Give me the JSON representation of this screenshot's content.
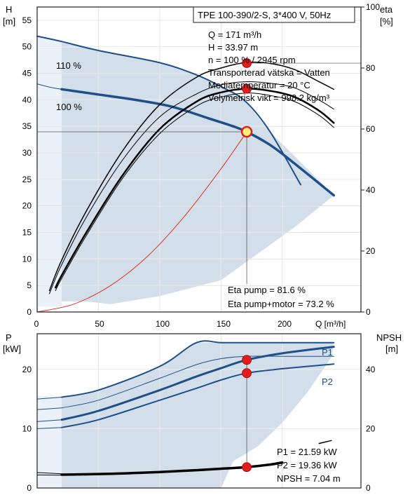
{
  "chart_data": [
    {
      "type": "line",
      "title": "TPE 100-390/2-S, 3*400 V, 50Hz",
      "xlabel": "Q [m³/h]",
      "ylabel_left_1": "H",
      "ylabel_left_2": "[m]",
      "ylabel_right_1": "eta",
      "ylabel_right_2": "[%]",
      "xlim": [
        0,
        250
      ],
      "ylim_left": [
        0,
        57.5
      ],
      "ylim_right": [
        0,
        100
      ],
      "grid": true,
      "x_ticks": [
        "0",
        "50",
        "100",
        "150",
        "200"
      ],
      "y_ticks_left": [
        "0",
        "5",
        "10",
        "15",
        "20",
        "25",
        "30",
        "35",
        "40",
        "45",
        "50",
        "55"
      ],
      "y_ticks_right": [
        "0",
        "20",
        "40",
        "60",
        "80",
        "100"
      ],
      "curve_labels": [
        "110 %",
        "100 %"
      ],
      "info_lines": [
        "Q = 171 m³/h",
        "H = 33.97 m",
        "n = 100 % / 2945 rpm",
        "Transporterad vätska = Vatten",
        "Mediatemperatur = 20 °C",
        "Volymetrisk vikt = 998.2 kg/m³"
      ],
      "eta_lines": [
        "Eta pump = 81.6 %",
        "Eta pump+motor = 73.2 %"
      ],
      "series": [
        {
          "name": "110 %",
          "axis": "left",
          "color": "#1f4f8a",
          "width": 2,
          "x": [
            0,
            20,
            50,
            100,
            130,
            150,
            170,
            190,
            215
          ],
          "y": [
            52,
            51,
            49.3,
            47,
            44.7,
            42.5,
            39.7,
            34,
            24
          ]
        },
        {
          "name": "100 %",
          "axis": "left",
          "color": "#1f4f8a",
          "width": 3.5,
          "x": [
            20,
            50,
            80,
            110,
            140,
            160,
            171,
            190,
            210,
            242
          ],
          "y": [
            42,
            41,
            40,
            38.7,
            36.5,
            35,
            33.97,
            31.5,
            28,
            22
          ]
        },
        {
          "axis": "left",
          "color": "#1f4f8a",
          "width": 1,
          "x": [
            0,
            10,
            20
          ],
          "y": [
            43,
            42.4,
            42
          ]
        },
        {
          "axis": "left",
          "color": "#e03020",
          "width": 1,
          "x": [
            0,
            30,
            60,
            90,
            120,
            150,
            171
          ],
          "y": [
            0,
            1.5,
            5,
            10.5,
            18,
            27,
            33.97
          ]
        },
        {
          "axis": "right",
          "color": "#000000",
          "width": 1.5,
          "x": [
            10,
            20,
            40,
            70,
            100,
            130,
            150,
            170,
            190,
            210,
            230,
            242
          ],
          "y": [
            7,
            17,
            33,
            53,
            68,
            77,
            80,
            81.8,
            81.5,
            79.5,
            75.5,
            73
          ]
        },
        {
          "axis": "right",
          "color": "#000000",
          "width": 1,
          "x": [
            10,
            20,
            40,
            70,
            100,
            130,
            150,
            170,
            190,
            210,
            230,
            242
          ],
          "y": [
            6,
            15.5,
            31,
            50,
            64,
            71.5,
            74.5,
            75.5,
            75,
            73.5,
            69.5,
            66.5
          ]
        },
        {
          "axis": "right",
          "color": "#000000",
          "width": 2.5,
          "x": [
            15,
            20,
            40,
            70,
            100,
            130,
            150,
            171,
            190,
            210,
            230,
            242
          ],
          "y": [
            8,
            12,
            26,
            45,
            60,
            69,
            72,
            73.2,
            72.5,
            70.5,
            66,
            62
          ]
        },
        {
          "axis": "right",
          "color": "#000000",
          "width": 1,
          "x": [
            15,
            20,
            40,
            70,
            100,
            130,
            150,
            171,
            190,
            210,
            230,
            242
          ],
          "y": [
            7,
            11,
            25,
            44,
            58.5,
            67.5,
            70.5,
            71.8,
            71,
            69,
            64.5,
            60.5
          ]
        }
      ],
      "operating_points": [
        {
          "x": 171,
          "y": 33.97,
          "axis": "left",
          "style": "ring"
        },
        {
          "x": 171,
          "y": 81.6,
          "axis": "right",
          "style": "dot"
        },
        {
          "x": 171,
          "y": 73.2,
          "axis": "right",
          "style": "dot"
        }
      ],
      "operating_point_guides": {
        "x": 171,
        "h": 33.97,
        "eta_pump": 81.6,
        "eta_motor": 73.2
      }
    },
    {
      "type": "line",
      "xlim": [
        0,
        250
      ],
      "ylim_left": [
        0,
        26
      ],
      "ylim_right": [
        0,
        52
      ],
      "grid": true,
      "ylabel_left_1": "P",
      "ylabel_left_2": "[kW]",
      "ylabel_right_1": "NPSH",
      "ylabel_right_2": "[m]",
      "y_ticks_left": [
        "0",
        "10",
        "20"
      ],
      "y_ticks_right": [
        "0",
        "20",
        "40"
      ],
      "curve_labels": [
        "P1",
        "P2"
      ],
      "info_lines": [
        "P1 = 21.59 kW",
        "P2 = 19.36 kW",
        "NPSH = 7.04 m"
      ],
      "series": [
        {
          "axis": "left",
          "color": "#1f4f8a",
          "width": 2,
          "x": [
            20,
            50,
            100,
            130,
            150,
            171,
            200,
            242
          ],
          "y": [
            15.3,
            16.5,
            20.5,
            24.5,
            24.5,
            24.5,
            24.5,
            24.5
          ]
        },
        {
          "name": "P1",
          "axis": "left",
          "color": "#1f4f8a",
          "width": 3,
          "x": [
            20,
            50,
            100,
            130,
            150,
            171,
            200,
            242
          ],
          "y": [
            11.5,
            13,
            16.5,
            18.8,
            20.2,
            21.59,
            22.7,
            23.8
          ]
        },
        {
          "name": "P2",
          "axis": "left",
          "color": "#1f4f8a",
          "width": 2,
          "x": [
            20,
            50,
            100,
            130,
            150,
            171,
            200,
            242
          ],
          "y": [
            10.2,
            11.5,
            14.8,
            16.8,
            18.2,
            19.36,
            20.1,
            20.9
          ]
        },
        {
          "axis": "left",
          "color": "#1f4f8a",
          "width": 1,
          "x": [
            20,
            50,
            100,
            130,
            150,
            171,
            200,
            242
          ],
          "y": [
            13.5,
            14.8,
            18.5,
            20.8,
            21.8,
            22.2,
            22.2,
            22.2
          ]
        },
        {
          "axis": "left",
          "color": "#1f4f8a",
          "width": 1,
          "x": [
            0,
            20
          ],
          "y": [
            15,
            15.3
          ]
        },
        {
          "axis": "left",
          "color": "#1f4f8a",
          "width": 1,
          "x": [
            0,
            20
          ],
          "y": [
            13.2,
            13.5
          ]
        },
        {
          "axis": "left",
          "color": "#1f4f8a",
          "width": 1,
          "x": [
            0,
            20
          ],
          "y": [
            11.2,
            11.5
          ]
        },
        {
          "axis": "left",
          "color": "#1f4f8a",
          "width": 1,
          "x": [
            0,
            20
          ],
          "y": [
            10,
            10.2
          ]
        },
        {
          "name": "NPSH",
          "axis": "right",
          "color": "#000000",
          "width": 3.5,
          "x": [
            20,
            60,
            100,
            130,
            150,
            171,
            190,
            200
          ],
          "y": [
            4.5,
            4.8,
            5.4,
            6,
            6.5,
            7.04,
            7.9,
            8.6
          ]
        },
        {
          "axis": "right",
          "color": "#000000",
          "width": 1,
          "x": [
            0,
            20
          ],
          "y": [
            5.2,
            4.8
          ]
        },
        {
          "axis": "right",
          "color": "#000000",
          "width": 1,
          "x": [
            0,
            20
          ],
          "y": [
            4.4,
            4.3
          ]
        },
        {
          "axis": "right",
          "color": "#000000",
          "width": 1.5,
          "x": [
            230,
            240
          ],
          "y": [
            15,
            16
          ]
        }
      ],
      "operating_points": [
        {
          "x": 171,
          "y": 21.59,
          "axis": "left",
          "style": "dot"
        },
        {
          "x": 171,
          "y": 19.36,
          "axis": "left",
          "style": "dot"
        },
        {
          "x": 171,
          "y": 7.04,
          "axis": "right",
          "style": "dot"
        }
      ],
      "operating_point_guide": {
        "x": 171,
        "from": 7.04,
        "to": 21.59
      }
    }
  ]
}
